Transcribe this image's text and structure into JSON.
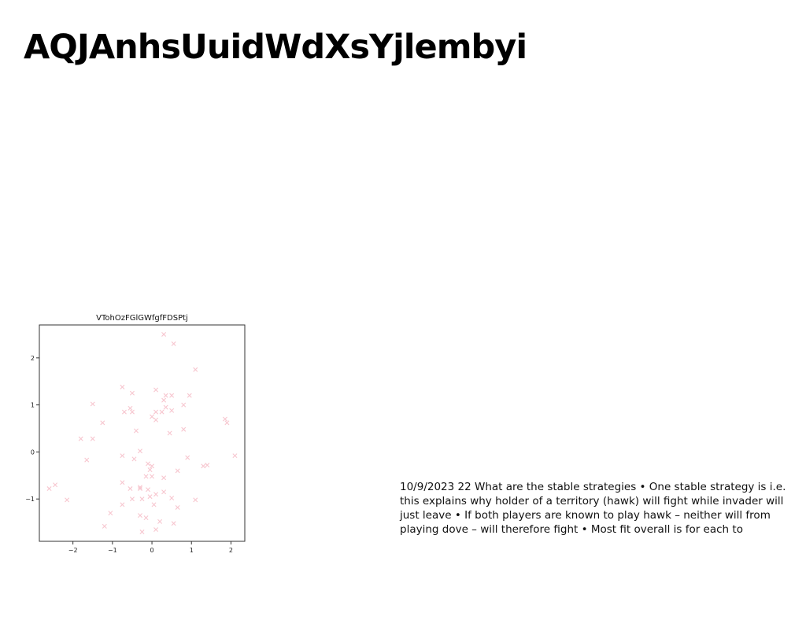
{
  "page": {
    "title": "AQJAnhsUuidWdXsYjlembyi",
    "body_text": "10/9/2023 22 What are the stable strategies • One stable strategy is i.e. this explains why holder of a territory (hawk) will fight while invader will just leave • If both players are known to play hawk – neither will from playing dove – will therefore fight • Most fit overall is for each to"
  },
  "chart_data": {
    "type": "scatter",
    "title": "VTohOzFGlGWfgfFDSPtj",
    "xlabel": "",
    "ylabel": "",
    "xlim": [
      -2.85,
      2.35
    ],
    "ylim": [
      -1.9,
      2.7
    ],
    "xticks": [
      -2,
      -1,
      0,
      1,
      2
    ],
    "yticks": [
      -1,
      0,
      1,
      2
    ],
    "xtick_labels": [
      "−2",
      "−1",
      "0",
      "1",
      "2"
    ],
    "ytick_labels": [
      "−1",
      "0",
      "1",
      "2"
    ],
    "grid": false,
    "marker": "x",
    "color": "#f7c6cf",
    "points": [
      [
        0.3,
        2.5
      ],
      [
        0.55,
        2.3
      ],
      [
        1.1,
        1.75
      ],
      [
        -0.75,
        1.38
      ],
      [
        -0.5,
        1.25
      ],
      [
        0.1,
        1.32
      ],
      [
        0.35,
        1.2
      ],
      [
        0.5,
        1.2
      ],
      [
        0.95,
        1.2
      ],
      [
        -1.5,
        1.02
      ],
      [
        0.3,
        1.1
      ],
      [
        0.35,
        0.95
      ],
      [
        0.8,
        1.0
      ],
      [
        -0.55,
        0.93
      ],
      [
        -0.7,
        0.85
      ],
      [
        -0.5,
        0.85
      ],
      [
        0.1,
        0.85
      ],
      [
        0.25,
        0.85
      ],
      [
        0.5,
        0.88
      ],
      [
        0.0,
        0.75
      ],
      [
        0.1,
        0.68
      ],
      [
        -1.25,
        0.62
      ],
      [
        1.85,
        0.7
      ],
      [
        1.9,
        0.62
      ],
      [
        -0.4,
        0.45
      ],
      [
        0.8,
        0.48
      ],
      [
        0.45,
        0.4
      ],
      [
        -1.8,
        0.28
      ],
      [
        -1.5,
        0.28
      ],
      [
        -0.3,
        0.02
      ],
      [
        -0.75,
        -0.08
      ],
      [
        -0.45,
        -0.15
      ],
      [
        -1.65,
        -0.17
      ],
      [
        0.9,
        -0.12
      ],
      [
        2.1,
        -0.08
      ],
      [
        -0.1,
        -0.25
      ],
      [
        0.0,
        -0.3
      ],
      [
        -0.05,
        -0.38
      ],
      [
        1.3,
        -0.3
      ],
      [
        1.4,
        -0.28
      ],
      [
        0.65,
        -0.4
      ],
      [
        -0.15,
        -0.52
      ],
      [
        0.0,
        -0.52
      ],
      [
        0.3,
        -0.55
      ],
      [
        -0.75,
        -0.65
      ],
      [
        -0.55,
        -0.78
      ],
      [
        -0.3,
        -0.75
      ],
      [
        -0.3,
        -0.78
      ],
      [
        -0.1,
        -0.8
      ],
      [
        -2.6,
        -0.78
      ],
      [
        -2.45,
        -0.7
      ],
      [
        0.3,
        -0.85
      ],
      [
        0.1,
        -0.9
      ],
      [
        -0.05,
        -0.95
      ],
      [
        -2.15,
        -1.02
      ],
      [
        -0.5,
        -1.0
      ],
      [
        -0.25,
        -1.0
      ],
      [
        0.5,
        -0.98
      ],
      [
        1.1,
        -1.02
      ],
      [
        -0.75,
        -1.12
      ],
      [
        0.05,
        -1.12
      ],
      [
        0.65,
        -1.18
      ],
      [
        -1.05,
        -1.3
      ],
      [
        -0.3,
        -1.35
      ],
      [
        -0.15,
        -1.4
      ],
      [
        0.2,
        -1.48
      ],
      [
        0.55,
        -1.52
      ],
      [
        -1.2,
        -1.58
      ],
      [
        0.1,
        -1.65
      ],
      [
        -0.25,
        -1.7
      ]
    ]
  }
}
